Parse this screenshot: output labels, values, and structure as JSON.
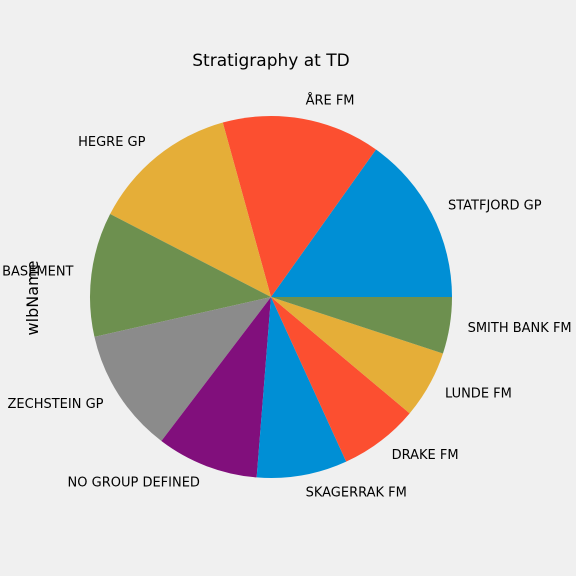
{
  "chart_data": {
    "type": "pie",
    "title": "Stratigraphy at TD",
    "ylabel": "wlbName",
    "labels": [
      "STATFJORD GP",
      "ÅRE FM",
      "HEGRE GP",
      "BASEMENT",
      "ZECHSTEIN GP",
      "NO GROUP DEFINED",
      "SKAGERRAK FM",
      "DRAKE FM",
      "LUNDE FM",
      "SMITH BANK FM"
    ],
    "values": [
      15,
      14,
      13,
      11,
      11,
      9,
      8,
      7,
      6,
      5
    ],
    "colors": [
      "#008fd5",
      "#fc4f30",
      "#e5ae38",
      "#6d904f",
      "#8b8b8b",
      "#810f7c",
      "#008fd5",
      "#fc4f30",
      "#e5ae38",
      "#6d904f"
    ],
    "start_angle_deg": 0,
    "direction": "counterclockwise",
    "legend": "none",
    "grid": false
  }
}
